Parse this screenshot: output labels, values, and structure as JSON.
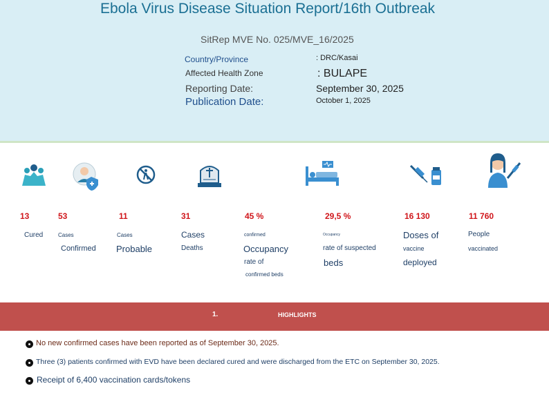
{
  "header": {
    "title": "Ebola Virus Disease Situation Report/16th Outbreak",
    "sitrep": "SitRep MVE No. 025/MVE_16/2025",
    "fields": [
      {
        "label": "Country/Province",
        "value": ": DRC/Kasai"
      },
      {
        "label": "Affected Health Zone",
        "value": ": BULAPE"
      },
      {
        "label": "Reporting Date:",
        "value": "September 30, 2025"
      },
      {
        "label": "Publication Date:",
        "value": "October 1, 2025"
      }
    ]
  },
  "stats": [
    {
      "value": "13",
      "label": [
        "Cured"
      ]
    },
    {
      "value": "53",
      "label": [
        "Cases",
        "Confirmed"
      ]
    },
    {
      "value": "11",
      "label": [
        "Cases",
        "Probable"
      ]
    },
    {
      "value": "31",
      "label": [
        "Cases",
        "Deaths"
      ]
    },
    {
      "value": "45 %",
      "label": [
        "confirmed",
        "Occupancy",
        "rate of",
        "confirmed beds"
      ]
    },
    {
      "value": "29,5 %",
      "label": [
        "Occupancy",
        "rate of suspected",
        "beds"
      ]
    },
    {
      "value": "16 130",
      "label": [
        "Doses of",
        "vaccine",
        "deployed"
      ]
    },
    {
      "value": "11 760",
      "label": [
        "People",
        "vaccinated"
      ]
    }
  ],
  "highlights": {
    "number": "1.",
    "title": "HIGHLIGHTS",
    "items": [
      "No new confirmed cases have been reported as of September 30, 2025.",
      "Three (3) patients confirmed with EVD have been declared cured and were discharged from the ETC on September 30, 2025.",
      "Receipt of 6,400 vaccination cards/tokens"
    ]
  }
}
